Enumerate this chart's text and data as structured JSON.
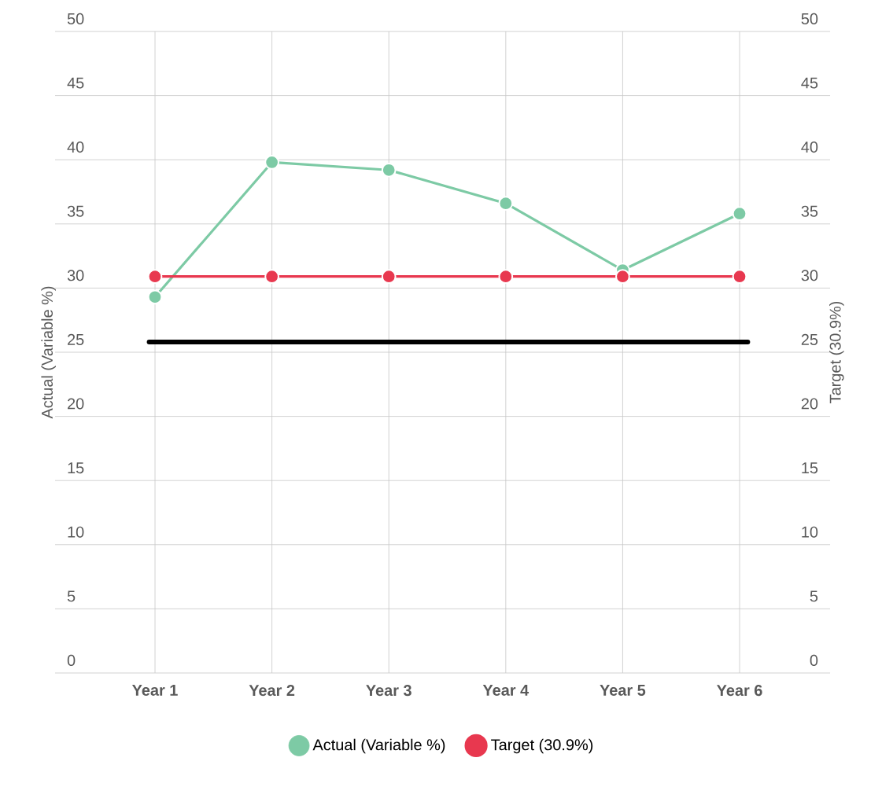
{
  "chart_data": {
    "type": "line",
    "categories": [
      "Year 1",
      "Year 2",
      "Year 3",
      "Year 4",
      "Year 5",
      "Year 6"
    ],
    "series": [
      {
        "name": "Actual (Variable %)",
        "color": "#7dcaa5",
        "values": [
          29.3,
          39.8,
          39.2,
          36.6,
          31.4,
          35.8
        ]
      },
      {
        "name": "Target (30.9%)",
        "color": "#e8384f",
        "axis": "y2",
        "values": [
          30.9,
          30.9,
          30.9,
          30.9,
          30.9,
          30.9
        ]
      }
    ],
    "ylabel": "Actual (Variable %)",
    "y2label": "Target (30.9%)",
    "ylim": [
      0,
      50
    ],
    "yticks": [
      0,
      5,
      10,
      15,
      20,
      25,
      30,
      35,
      40,
      45,
      50
    ],
    "y2lim": [
      0,
      50
    ],
    "y2ticks": [
      0,
      5,
      10,
      15,
      20,
      25,
      30,
      35,
      40,
      45,
      50
    ],
    "ref_lines": [
      {
        "axis": "y",
        "value": 25.8,
        "color": "#000000"
      }
    ],
    "grid": true,
    "legend": "bottom",
    "marker": "circle",
    "line_style": "solid"
  }
}
